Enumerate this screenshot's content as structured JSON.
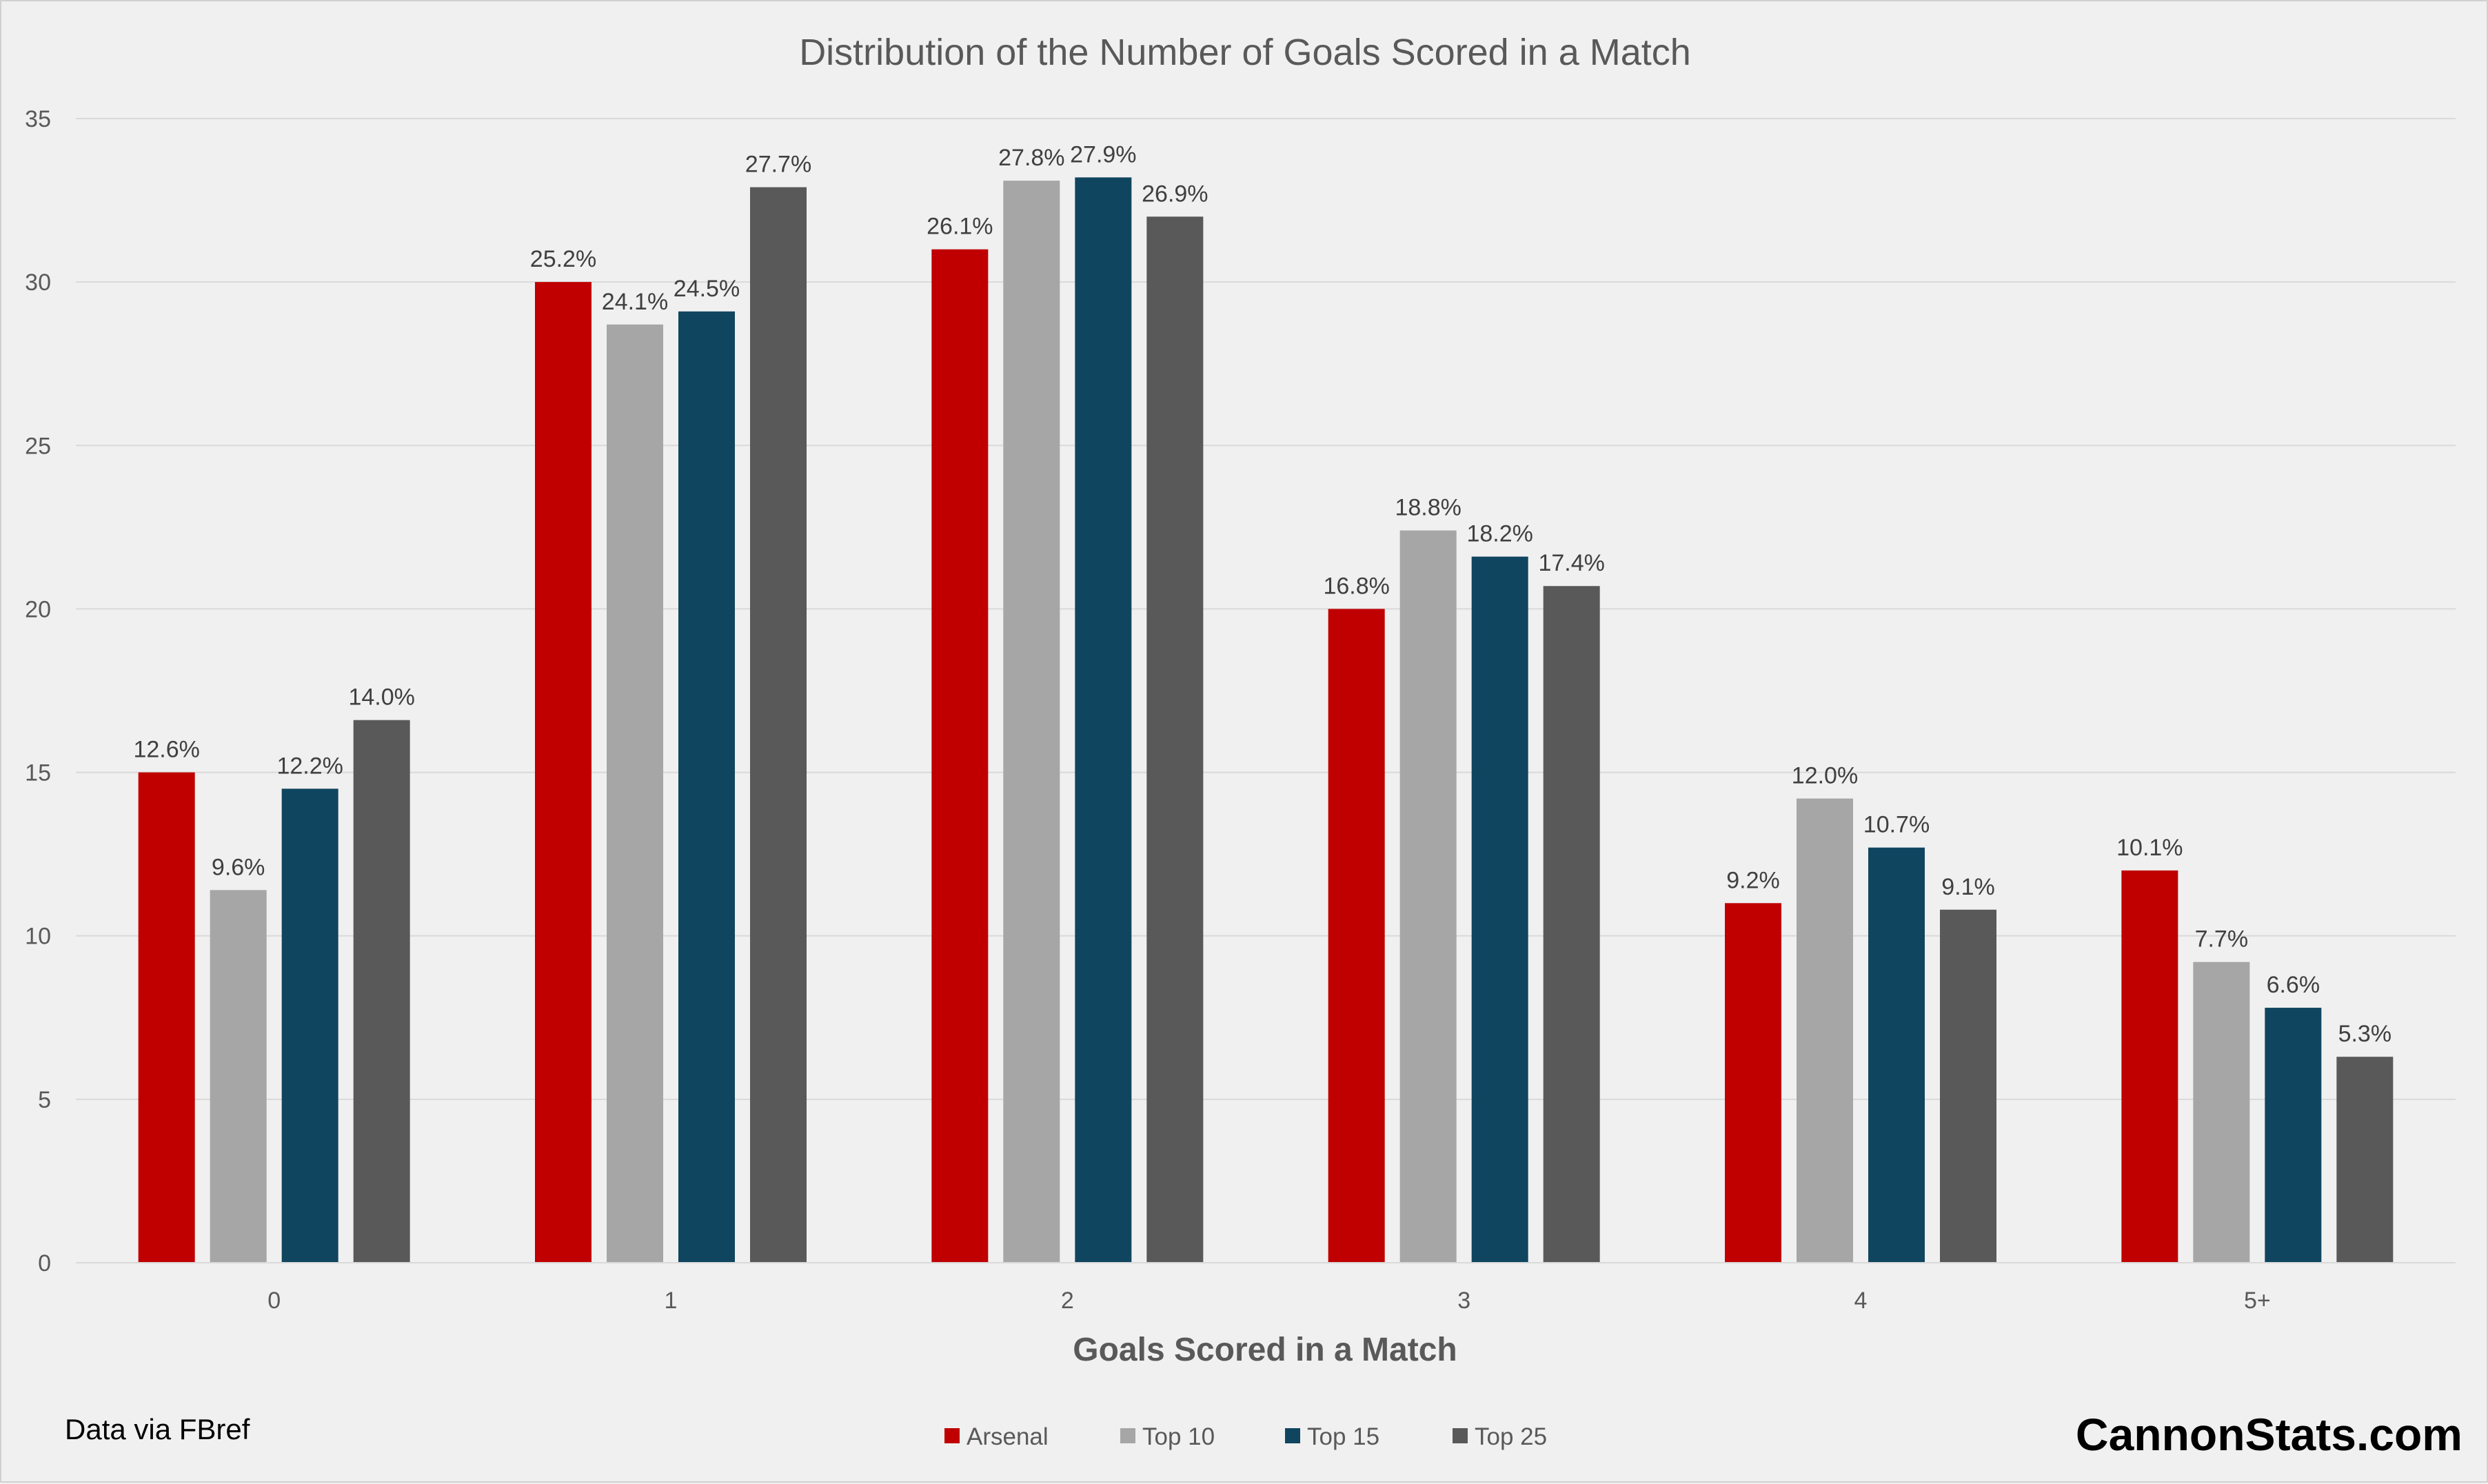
{
  "chart_data": {
    "type": "bar",
    "title": "Distribution of the Number of Goals Scored in a Match",
    "xlabel": "Goals Scored in a Match",
    "ylabel": "",
    "ylim": [
      0,
      35
    ],
    "yticks": [
      0,
      5,
      10,
      15,
      20,
      25,
      30,
      35
    ],
    "grid": true,
    "legend_position": "bottom",
    "categories": [
      "0",
      "1",
      "2",
      "3",
      "4",
      "5+"
    ],
    "series": [
      {
        "name": "Arsenal",
        "color": "#c00000",
        "values": [
          15,
          30,
          31,
          20,
          11,
          12
        ],
        "labels": [
          "12.6%",
          "25.2%",
          "26.1%",
          "16.8%",
          "9.2%",
          "10.1%"
        ]
      },
      {
        "name": "Top 10",
        "color": "#a6a6a6",
        "values": [
          11.4,
          28.7,
          33.1,
          22.4,
          14.2,
          9.2
        ],
        "labels": [
          "9.6%",
          "24.1%",
          "27.8%",
          "18.8%",
          "12.0%",
          "7.7%"
        ]
      },
      {
        "name": "Top 15",
        "color": "#10455f",
        "values": [
          14.5,
          29.1,
          33.2,
          21.6,
          12.7,
          7.8
        ],
        "labels": [
          "12.2%",
          "24.5%",
          "27.9%",
          "18.2%",
          "10.7%",
          "6.6%"
        ]
      },
      {
        "name": "Top 25",
        "color": "#595959",
        "values": [
          16.6,
          32.9,
          32.0,
          20.7,
          10.8,
          6.3
        ],
        "labels": [
          "14.0%",
          "27.7%",
          "26.9%",
          "17.4%",
          "9.1%",
          "5.3%"
        ]
      }
    ]
  },
  "footer": {
    "source": "Data via FBref",
    "brand": "CannonStats.com"
  }
}
